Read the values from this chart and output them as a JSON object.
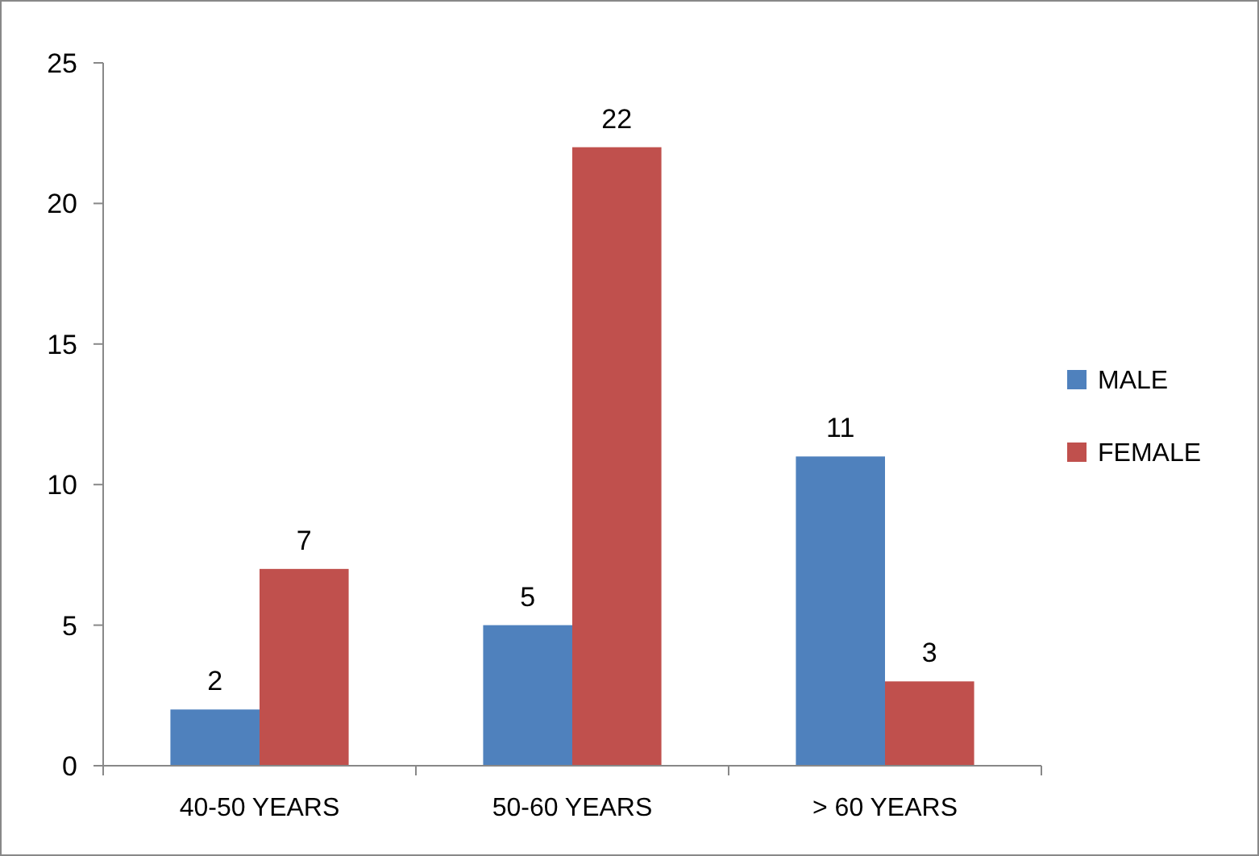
{
  "chart_data": {
    "type": "bar",
    "categories": [
      "40-50 YEARS",
      "50-60 YEARS",
      "> 60 YEARS"
    ],
    "series": [
      {
        "name": "MALE",
        "color": "#4f81bd",
        "values": [
          2,
          5,
          11
        ]
      },
      {
        "name": "FEMALE",
        "color": "#c0504d",
        "values": [
          7,
          22,
          3
        ]
      }
    ],
    "ylim": [
      0,
      25
    ],
    "yticks": [
      0,
      5,
      10,
      15,
      20,
      25
    ],
    "grid": false,
    "legend": "right",
    "data_labels": true
  }
}
